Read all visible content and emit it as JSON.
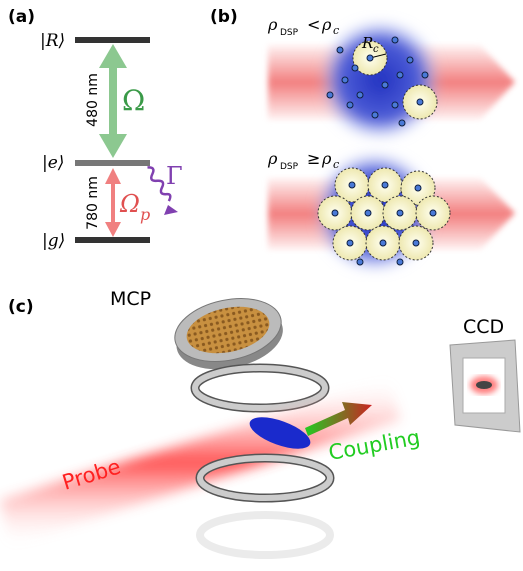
{
  "panel_a": {
    "label": "(a)",
    "levels": {
      "R": "|R⟩",
      "e": "|e⟩",
      "g": "|g⟩"
    },
    "coupling_wavelength": "480 nm",
    "probe_wavelength": "780 nm",
    "coupling_rabi": "Ω",
    "decay": "Γ",
    "probe_rabi": {
      "symbol": "Ω",
      "subscript": "p"
    }
  },
  "panel_b": {
    "label": "(b)",
    "low_density": {
      "lhs": {
        "symbol": "ρ",
        "subscript": "DSP"
      },
      "relation": "<",
      "rhs": {
        "symbol": "ρ",
        "subscript": "c"
      }
    },
    "blockade_radius": {
      "symbol": "R",
      "subscript": "c"
    },
    "high_density": {
      "lhs": {
        "symbol": "ρ",
        "subscript": "DSP"
      },
      "relation": "≥",
      "rhs": {
        "symbol": "ρ",
        "subscript": "c"
      }
    }
  },
  "panel_c": {
    "label": "(c)",
    "detector": "MCP",
    "camera": "CCD",
    "probe": "Probe",
    "coupling": "Coupling"
  }
}
